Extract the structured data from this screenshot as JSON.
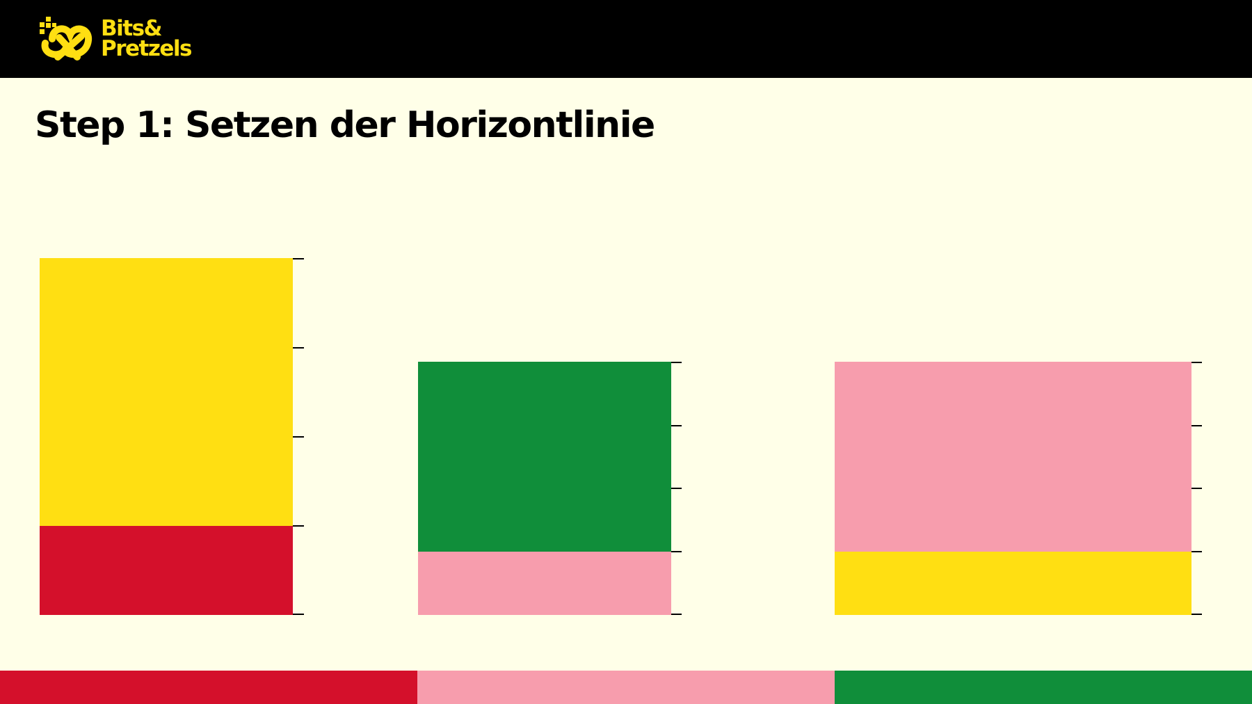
{
  "brand": {
    "line1": "Bits&",
    "line2": "Pretzels",
    "color": "#FFDF12",
    "icon": "pretzel-logo-icon"
  },
  "slide": {
    "title": "Step 1: Setzen der Horizontlinie"
  },
  "palette": {
    "yellow": "#FFDF12",
    "red": "#D4102B",
    "green": "#108E3A",
    "pink": "#F79DAD",
    "background": "#FFFFE8",
    "header": "#000000"
  },
  "panels": [
    {
      "name": "panel-1",
      "sky_color": "#FFDF12",
      "ground_color": "#D4102B",
      "ticks": 5,
      "horizon_share": 0.75
    },
    {
      "name": "panel-2",
      "sky_color": "#108E3A",
      "ground_color": "#F79DAD",
      "ticks": 5,
      "horizon_share": 0.75
    },
    {
      "name": "panel-3",
      "sky_color": "#F79DAD",
      "ground_color": "#FFDF12",
      "ticks": 5,
      "horizon_share": 0.75
    }
  ],
  "footer_strip": [
    "#D4102B",
    "#F79DAD",
    "#108E3A"
  ]
}
